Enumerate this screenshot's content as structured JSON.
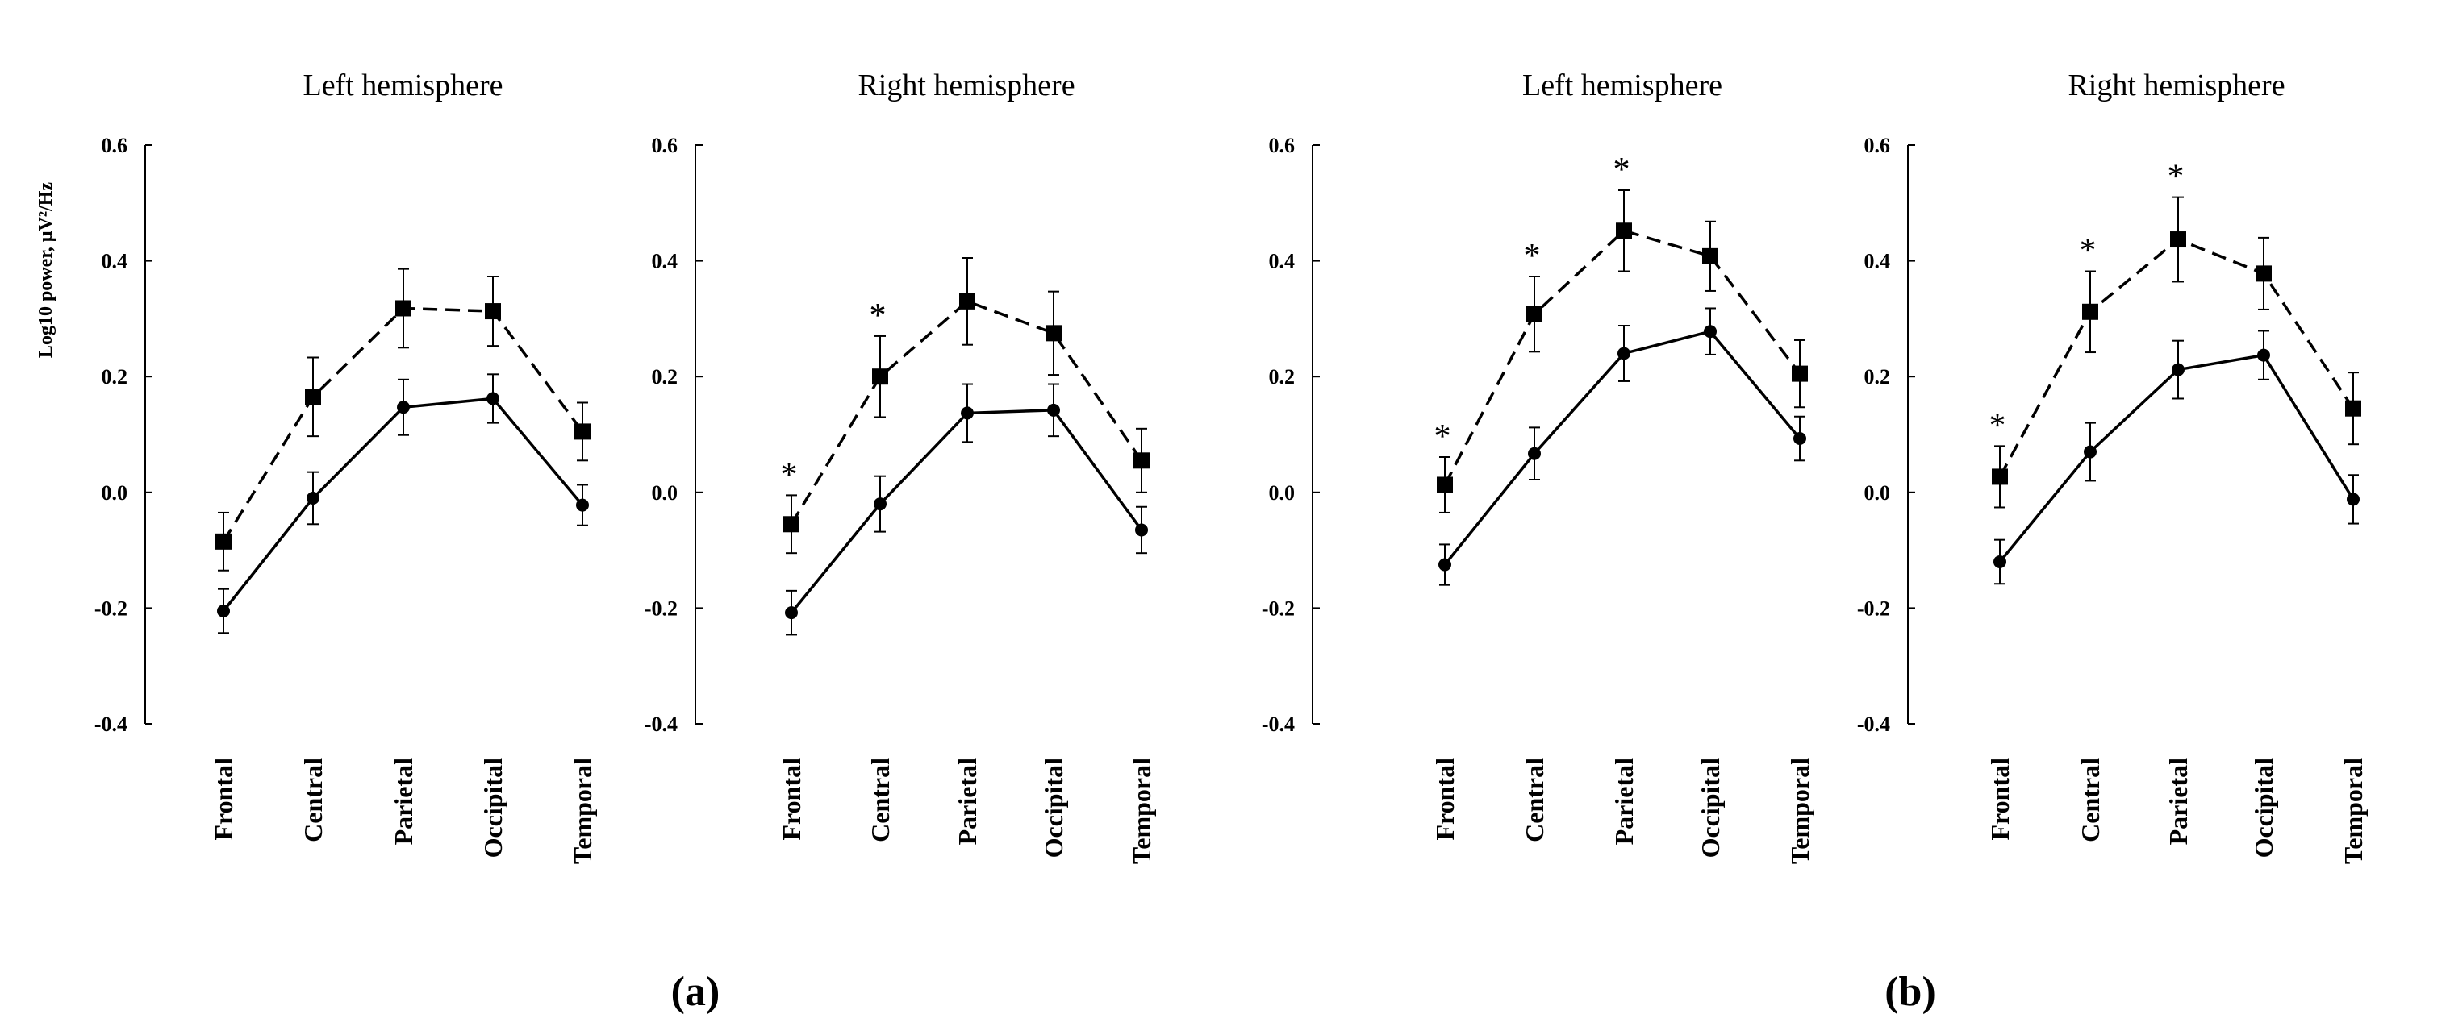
{
  "figure_labels": [
    "(a)",
    "(b)"
  ],
  "ylabel_text": "Log10 power, µV²/Hz",
  "chart_data": [
    {
      "type": "line",
      "group": "(a)",
      "title": "Left hemisphere",
      "categories": [
        "Frontal",
        "Central",
        "Parietal",
        "Occipital",
        "Temporal"
      ],
      "ylabel": "Log10 power, µV²/Hz",
      "ylim": [
        -0.4,
        0.6
      ],
      "yticks": [
        "0.6",
        "0.4",
        "0.2",
        "0.0",
        "-0.2",
        "-0.4"
      ],
      "series": [
        {
          "name": "dashed-square",
          "style": "dashed",
          "marker": "square",
          "values": [
            -0.085,
            0.165,
            0.318,
            0.313,
            0.105
          ],
          "err": [
            0.05,
            0.068,
            0.068,
            0.06,
            0.05
          ]
        },
        {
          "name": "solid-circle",
          "style": "solid",
          "marker": "circle",
          "values": [
            -0.205,
            -0.01,
            0.147,
            0.162,
            -0.022
          ],
          "err": [
            0.038,
            0.045,
            0.048,
            0.042,
            0.035
          ]
        }
      ],
      "significant": []
    },
    {
      "type": "line",
      "group": "(a)",
      "title": "Right hemisphere",
      "categories": [
        "Frontal",
        "Central",
        "Parietal",
        "Occipital",
        "Temporal"
      ],
      "ylabel": "",
      "ylim": [
        -0.4,
        0.6
      ],
      "yticks": [
        "0.6",
        "0.4",
        "0.2",
        "0.0",
        "-0.2",
        "-0.4"
      ],
      "series": [
        {
          "name": "dashed-square",
          "style": "dashed",
          "marker": "square",
          "values": [
            -0.055,
            0.2,
            0.33,
            0.275,
            0.055
          ],
          "err": [
            0.05,
            0.07,
            0.075,
            0.072,
            0.055
          ]
        },
        {
          "name": "solid-circle",
          "style": "solid",
          "marker": "circle",
          "values": [
            -0.208,
            -0.02,
            0.137,
            0.142,
            -0.065
          ],
          "err": [
            0.038,
            0.048,
            0.05,
            0.045,
            0.04
          ]
        }
      ],
      "significant": [
        {
          "category": "Frontal",
          "label": "*"
        },
        {
          "category": "Central",
          "label": "*"
        }
      ]
    },
    {
      "type": "line",
      "group": "(b)",
      "title": "Left hemisphere",
      "categories": [
        "Frontal",
        "Central",
        "Parietal",
        "Occipital",
        "Temporal"
      ],
      "ylabel": "",
      "ylim": [
        -0.4,
        0.6
      ],
      "yticks": [
        "0.6",
        "0.4",
        "0.2",
        "0.0",
        "-0.2",
        "-0.4"
      ],
      "series": [
        {
          "name": "dashed-square",
          "style": "dashed",
          "marker": "square",
          "values": [
            0.013,
            0.308,
            0.452,
            0.408,
            0.205
          ],
          "err": [
            0.048,
            0.065,
            0.07,
            0.06,
            0.058
          ]
        },
        {
          "name": "solid-circle",
          "style": "solid",
          "marker": "circle",
          "values": [
            -0.125,
            0.067,
            0.24,
            0.278,
            0.093
          ],
          "err": [
            0.035,
            0.045,
            0.048,
            0.04,
            0.038
          ]
        }
      ],
      "significant": [
        {
          "category": "Frontal",
          "label": "*"
        },
        {
          "category": "Central",
          "label": "*"
        },
        {
          "category": "Parietal",
          "label": "*"
        }
      ]
    },
    {
      "type": "line",
      "group": "(b)",
      "title": "Right hemisphere",
      "categories": [
        "Frontal",
        "Central",
        "Parietal",
        "Occipital",
        "Temporal"
      ],
      "ylabel": "",
      "ylim": [
        -0.4,
        0.6
      ],
      "yticks": [
        "0.6",
        "0.4",
        "0.2",
        "0.0",
        "-0.2",
        "-0.4"
      ],
      "series": [
        {
          "name": "dashed-square",
          "style": "dashed",
          "marker": "square",
          "values": [
            0.027,
            0.312,
            0.437,
            0.378,
            0.145
          ],
          "err": [
            0.053,
            0.07,
            0.073,
            0.062,
            0.062
          ]
        },
        {
          "name": "solid-circle",
          "style": "solid",
          "marker": "circle",
          "values": [
            -0.12,
            0.07,
            0.212,
            0.237,
            -0.012
          ],
          "err": [
            0.038,
            0.05,
            0.05,
            0.042,
            0.042
          ]
        }
      ],
      "significant": [
        {
          "category": "Frontal",
          "label": "*"
        },
        {
          "category": "Central",
          "label": "*"
        },
        {
          "category": "Parietal",
          "label": "*"
        }
      ]
    }
  ]
}
